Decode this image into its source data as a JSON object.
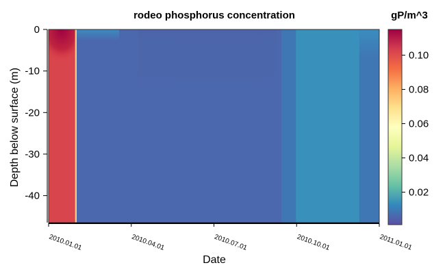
{
  "chart_data": {
    "type": "heatmap",
    "title": "rodeo phosphorus concentration",
    "xlabel": "Date",
    "ylabel": "Depth below surface (m)",
    "x_tick_labels": [
      "2010.01.01",
      "2010.04.01",
      "2010.07.01",
      "2010.10.01",
      "2011.01.01"
    ],
    "x_range": [
      "2010-01-01",
      "2011-01-01"
    ],
    "y_ticks": [
      0,
      -10,
      -20,
      -30,
      -40
    ],
    "y_tick_labels": [
      "0",
      "-10",
      "-20",
      "-30",
      "-40"
    ],
    "ylim": [
      -46.5,
      0
    ],
    "colorbar": {
      "title": "gP/m^3",
      "ticks": [
        0.02,
        0.04,
        0.06,
        0.08,
        0.1
      ],
      "tick_labels": [
        "0.02",
        "0.04",
        "0.06",
        "0.08",
        "0.10"
      ],
      "range": [
        0.001,
        0.115
      ],
      "colormap": "Spectral (reversed)",
      "colors": [
        "#5e4fa2",
        "#3288bd",
        "#66c2a5",
        "#abdda4",
        "#e6f598",
        "#ffffbf",
        "#fee08b",
        "#fdae61",
        "#f46d43",
        "#d53e4f",
        "#9e0142"
      ]
    },
    "field": [
      {
        "from": "2010-01-01",
        "to": "2010-01-30",
        "value": 0.102,
        "note_surface_value": 0.115
      },
      {
        "from": "2010-01-30",
        "to": "2010-02-01",
        "value": 0.05
      },
      {
        "from": "2010-02-01",
        "to": "2010-09-15",
        "value": 0.006
      },
      {
        "from": "2010-09-15",
        "to": "2010-10-01",
        "value": 0.009
      },
      {
        "from": "2010-10-01",
        "to": "2010-12-10",
        "value": 0.014
      },
      {
        "from": "2010-12-10",
        "to": "2011-01-01",
        "value": 0.009
      }
    ]
  }
}
